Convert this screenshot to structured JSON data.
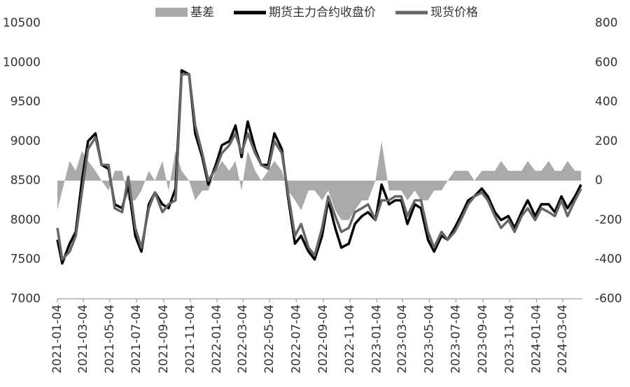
{
  "chart_data": {
    "type": "line",
    "x": [
      "2021-01-04",
      "2021-01-15",
      "2021-02-01",
      "2021-02-15",
      "2021-03-01",
      "2021-03-15",
      "2021-04-01",
      "2021-04-15",
      "2021-05-01",
      "2021-05-15",
      "2021-06-01",
      "2021-06-15",
      "2021-07-01",
      "2021-07-15",
      "2021-08-01",
      "2021-08-15",
      "2021-09-01",
      "2021-09-15",
      "2021-10-01",
      "2021-10-15",
      "2021-11-01",
      "2021-11-15",
      "2021-12-01",
      "2021-12-15",
      "2022-01-01",
      "2022-01-15",
      "2022-02-01",
      "2022-02-15",
      "2022-03-01",
      "2022-03-15",
      "2022-04-01",
      "2022-04-15",
      "2022-05-01",
      "2022-05-15",
      "2022-06-01",
      "2022-06-15",
      "2022-07-01",
      "2022-07-15",
      "2022-08-01",
      "2022-08-15",
      "2022-09-01",
      "2022-09-15",
      "2022-10-01",
      "2022-10-15",
      "2022-11-01",
      "2022-11-15",
      "2022-12-01",
      "2022-12-15",
      "2023-01-01",
      "2023-01-15",
      "2023-02-01",
      "2023-02-15",
      "2023-03-01",
      "2023-03-15",
      "2023-04-01",
      "2023-04-15",
      "2023-05-01",
      "2023-05-15",
      "2023-06-01",
      "2023-06-15",
      "2023-07-01",
      "2023-07-15",
      "2023-08-01",
      "2023-08-15",
      "2023-09-01",
      "2023-09-15",
      "2023-10-01",
      "2023-10-15",
      "2023-11-01",
      "2023-11-15",
      "2023-12-01",
      "2023-12-15",
      "2024-01-01",
      "2024-01-15",
      "2024-02-01",
      "2024-02-15",
      "2024-03-01",
      "2024-03-15",
      "2024-04-01",
      "2024-04-15"
    ],
    "series": [
      {
        "name": "基差",
        "color": "#aaaaaa",
        "axis": "y2",
        "kind": "area",
        "values": [
          -150,
          -50,
          100,
          50,
          150,
          100,
          50,
          0,
          -50,
          50,
          50,
          -100,
          -100,
          -50,
          50,
          0,
          100,
          -50,
          150,
          50,
          0,
          -100,
          -50,
          -50,
          50,
          100,
          50,
          100,
          -50,
          150,
          50,
          0,
          50,
          100,
          50,
          -50,
          -100,
          -150,
          -50,
          -50,
          -100,
          -50,
          -150,
          -200,
          -200,
          -150,
          -100,
          -100,
          0,
          200,
          -50,
          -50,
          -50,
          -100,
          -50,
          -100,
          -100,
          -50,
          -50,
          0,
          50,
          50,
          50,
          0,
          50,
          50,
          50,
          100,
          50,
          50,
          50,
          100,
          50,
          50,
          100,
          50,
          50,
          100,
          50,
          50
        ]
      },
      {
        "name": "期货主力合约收盘价",
        "color": "#000000",
        "values": [
          7750,
          7450,
          7700,
          7850,
          8500,
          9000,
          9100,
          8700,
          8650,
          8200,
          8150,
          8450,
          7800,
          7600,
          8200,
          8350,
          8200,
          8150,
          8400,
          9900,
          9850,
          9100,
          8800,
          8450,
          8700,
          8950,
          9000,
          9200,
          8800,
          9250,
          8900,
          8700,
          8700,
          9100,
          8900,
          8300,
          7700,
          7800,
          7600,
          7500,
          7800,
          8250,
          7900,
          7650,
          7700,
          7950,
          8050,
          8100,
          8000,
          8450,
          8200,
          8250,
          8250,
          7950,
          8200,
          8150,
          7750,
          7600,
          7800,
          7750,
          7900,
          8050,
          8250,
          8300,
          8400,
          8300,
          8100,
          8000,
          8050,
          7900,
          8100,
          8250,
          8050,
          8200,
          8200,
          8100,
          8300,
          8150,
          8300,
          8450
        ]
      },
      {
        "name": "现货价格",
        "color": "#666666",
        "values": [
          7900,
          7500,
          7600,
          7800,
          8350,
          8900,
          9050,
          8700,
          8700,
          8150,
          8100,
          8550,
          7900,
          7650,
          8150,
          8350,
          8100,
          8200,
          8250,
          9850,
          9850,
          9200,
          8850,
          8500,
          8650,
          8850,
          8950,
          9100,
          8850,
          9100,
          8850,
          8700,
          8650,
          9000,
          8850,
          8350,
          7800,
          7950,
          7650,
          7550,
          7900,
          8300,
          8050,
          7850,
          7900,
          8100,
          8150,
          8200,
          8000,
          8250,
          8250,
          8300,
          8300,
          8050,
          8250,
          8250,
          7850,
          7650,
          7850,
          7750,
          7850,
          8000,
          8200,
          8300,
          8350,
          8250,
          8050,
          7900,
          8000,
          7850,
          8050,
          8150,
          8000,
          8150,
          8100,
          8050,
          8250,
          8050,
          8250,
          8400
        ]
      }
    ],
    "xlim": [
      "2021-01-04",
      "2024-04-18"
    ],
    "xticks": [
      "2021-01-04",
      "2021-03-04",
      "2021-05-04",
      "2021-07-04",
      "2021-09-04",
      "2021-11-04",
      "2022-01-04",
      "2022-03-04",
      "2022-05-04",
      "2022-07-04",
      "2022-09-04",
      "2022-11-04",
      "2023-01-04",
      "2023-03-04",
      "2023-05-04",
      "2023-07-04",
      "2023-09-04",
      "2023-11-04",
      "2024-01-04",
      "2024-03-04"
    ],
    "ylim": [
      7000,
      10500
    ],
    "yticks": [
      7000,
      7500,
      8000,
      8500,
      9000,
      9500,
      10000,
      10500
    ],
    "y2lim": [
      -600,
      800
    ],
    "y2ticks": [
      -600,
      -400,
      -200,
      0,
      200,
      400,
      600,
      800
    ],
    "legend": "top"
  }
}
